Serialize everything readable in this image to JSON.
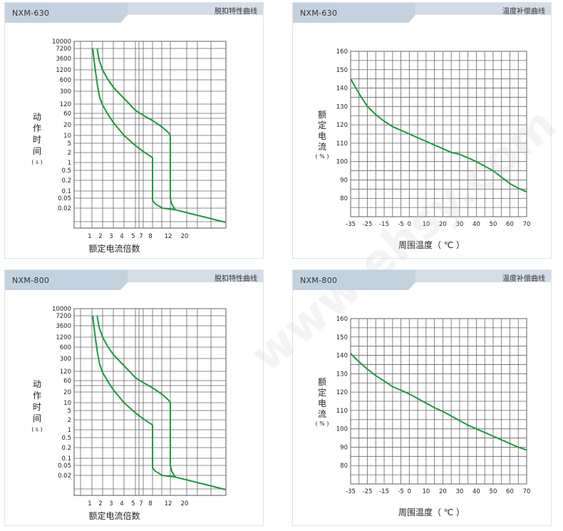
{
  "watermark": "www.ehsy.com",
  "chart_data": [
    {
      "type": "line",
      "model": "NXM-630",
      "title": "脱扣特性曲线",
      "xlabel": "额定电流倍数",
      "ylabel_chars": [
        "动",
        "作",
        "时",
        "间"
      ],
      "ylabel_unit": "( s )",
      "x_ticks": [
        1,
        2,
        3,
        4,
        5,
        7,
        8,
        12,
        20
      ],
      "y_ticks": [
        10000,
        7200,
        3600,
        1200,
        600,
        300,
        120,
        60,
        20,
        10,
        5,
        2,
        1,
        0.5,
        0.2,
        0.1,
        0.05,
        0.02
      ],
      "grid": true,
      "line_color": "#1a9a3c",
      "series": [
        {
          "points": [
            [
              1.05,
              7200
            ],
            [
              1.15,
              3000
            ],
            [
              1.27,
              1000
            ],
            [
              1.45,
              400
            ],
            [
              1.65,
              200
            ],
            [
              2,
              110
            ],
            [
              2.5,
              50
            ],
            [
              3,
              25
            ],
            [
              4,
              10
            ],
            [
              5,
              4
            ],
            [
              7,
              2.2
            ],
            [
              8,
              1.4
            ],
            [
              8,
              0.04
            ],
            [
              8.5,
              0.03
            ],
            [
              10,
              0.02
            ],
            [
              14,
              0.017
            ],
            [
              40,
              0.005
            ]
          ]
        },
        {
          "points": [
            [
              1.4,
              7200
            ],
            [
              1.6,
              3000
            ],
            [
              2,
              1200
            ],
            [
              2.4,
              650
            ],
            [
              3,
              380
            ],
            [
              4,
              180
            ],
            [
              5,
              75
            ],
            [
              7,
              50
            ],
            [
              8,
              30
            ],
            [
              10,
              17
            ],
            [
              11.5,
              12
            ],
            [
              12,
              10
            ],
            [
              12,
              0.05
            ],
            [
              12.5,
              0.03
            ],
            [
              14,
              0.017
            ]
          ]
        }
      ]
    },
    {
      "type": "line",
      "model": "NXM-630",
      "title": "温度补偿曲线",
      "xlabel": "周围温度（ ℃ ）",
      "ylabel_chars": [
        "额",
        "定",
        "电",
        "流"
      ],
      "ylabel_unit": "( % )",
      "xlim": [
        -35,
        70
      ],
      "ylim": [
        70,
        160
      ],
      "x_ticks": [
        -35,
        -25,
        -15,
        -5,
        0,
        10,
        20,
        30,
        40,
        50,
        60,
        70
      ],
      "y_ticks": [
        160,
        150,
        140,
        130,
        120,
        110,
        100,
        90,
        80
      ],
      "grid": true,
      "line_color": "#1a9a3c",
      "series": [
        {
          "x": [
            -35,
            -30,
            -25,
            -20,
            -15,
            -10,
            -5,
            0,
            5,
            10,
            15,
            20,
            25,
            30,
            35,
            40,
            45,
            50,
            55,
            60,
            65,
            70
          ],
          "y": [
            145,
            137,
            130,
            125.5,
            122,
            119,
            117,
            115,
            113,
            111,
            109,
            107,
            105,
            104,
            102,
            100,
            97.5,
            95,
            91.5,
            88,
            85.5,
            83.5
          ]
        }
      ]
    },
    {
      "type": "line",
      "model": "NXM-800",
      "title": "脱扣特性曲线",
      "xlabel": "额定电流倍数",
      "ylabel_chars": [
        "动",
        "作",
        "时",
        "间"
      ],
      "ylabel_unit": "( s )",
      "x_ticks": [
        1,
        2,
        3,
        4,
        5,
        7,
        8,
        12,
        20
      ],
      "y_ticks": [
        10000,
        7200,
        3600,
        1200,
        600,
        300,
        120,
        60,
        20,
        10,
        5,
        2,
        1,
        0.5,
        0.2,
        0.1,
        0.05,
        0.02
      ],
      "grid": true,
      "line_color": "#1a9a3c",
      "series": [
        {
          "points": [
            [
              1.05,
              7200
            ],
            [
              1.15,
              3000
            ],
            [
              1.27,
              1000
            ],
            [
              1.45,
              400
            ],
            [
              1.65,
              200
            ],
            [
              2,
              110
            ],
            [
              2.5,
              50
            ],
            [
              3,
              25
            ],
            [
              4,
              10
            ],
            [
              5,
              4
            ],
            [
              7,
              2.2
            ],
            [
              8,
              1.4
            ],
            [
              8,
              0.04
            ],
            [
              8.5,
              0.03
            ],
            [
              10,
              0.02
            ],
            [
              14,
              0.017
            ],
            [
              40,
              0.005
            ]
          ]
        },
        {
          "points": [
            [
              1.4,
              7200
            ],
            [
              1.6,
              3000
            ],
            [
              2,
              1200
            ],
            [
              2.4,
              650
            ],
            [
              3,
              380
            ],
            [
              4,
              180
            ],
            [
              5,
              75
            ],
            [
              7,
              50
            ],
            [
              8,
              30
            ],
            [
              10,
              17
            ],
            [
              11.5,
              12
            ],
            [
              12,
              10
            ],
            [
              12,
              0.05
            ],
            [
              12.5,
              0.03
            ],
            [
              14,
              0.017
            ]
          ]
        }
      ]
    },
    {
      "type": "line",
      "model": "NXM-800",
      "title": "温度补偿曲线",
      "xlabel": "周围温度（ ℃ ）",
      "ylabel_chars": [
        "额",
        "定",
        "电",
        "流"
      ],
      "ylabel_unit": "( % )",
      "xlim": [
        -35,
        70
      ],
      "ylim": [
        70,
        160
      ],
      "x_ticks": [
        -35,
        -25,
        -15,
        -5,
        0,
        10,
        20,
        30,
        40,
        50,
        60,
        70
      ],
      "y_ticks": [
        160,
        150,
        140,
        130,
        120,
        110,
        100,
        90,
        80
      ],
      "grid": true,
      "line_color": "#1a9a3c",
      "series": [
        {
          "x": [
            -35,
            -30,
            -25,
            -20,
            -15,
            -10,
            -5,
            0,
            5,
            10,
            15,
            20,
            25,
            30,
            35,
            40,
            45,
            50,
            55,
            60,
            65,
            70
          ],
          "y": [
            141,
            136.5,
            132.5,
            129,
            126,
            123,
            121,
            119,
            116.5,
            114,
            111.5,
            109.5,
            107,
            104.5,
            102,
            100,
            98,
            96,
            94,
            92,
            90,
            88.5
          ]
        }
      ]
    }
  ]
}
